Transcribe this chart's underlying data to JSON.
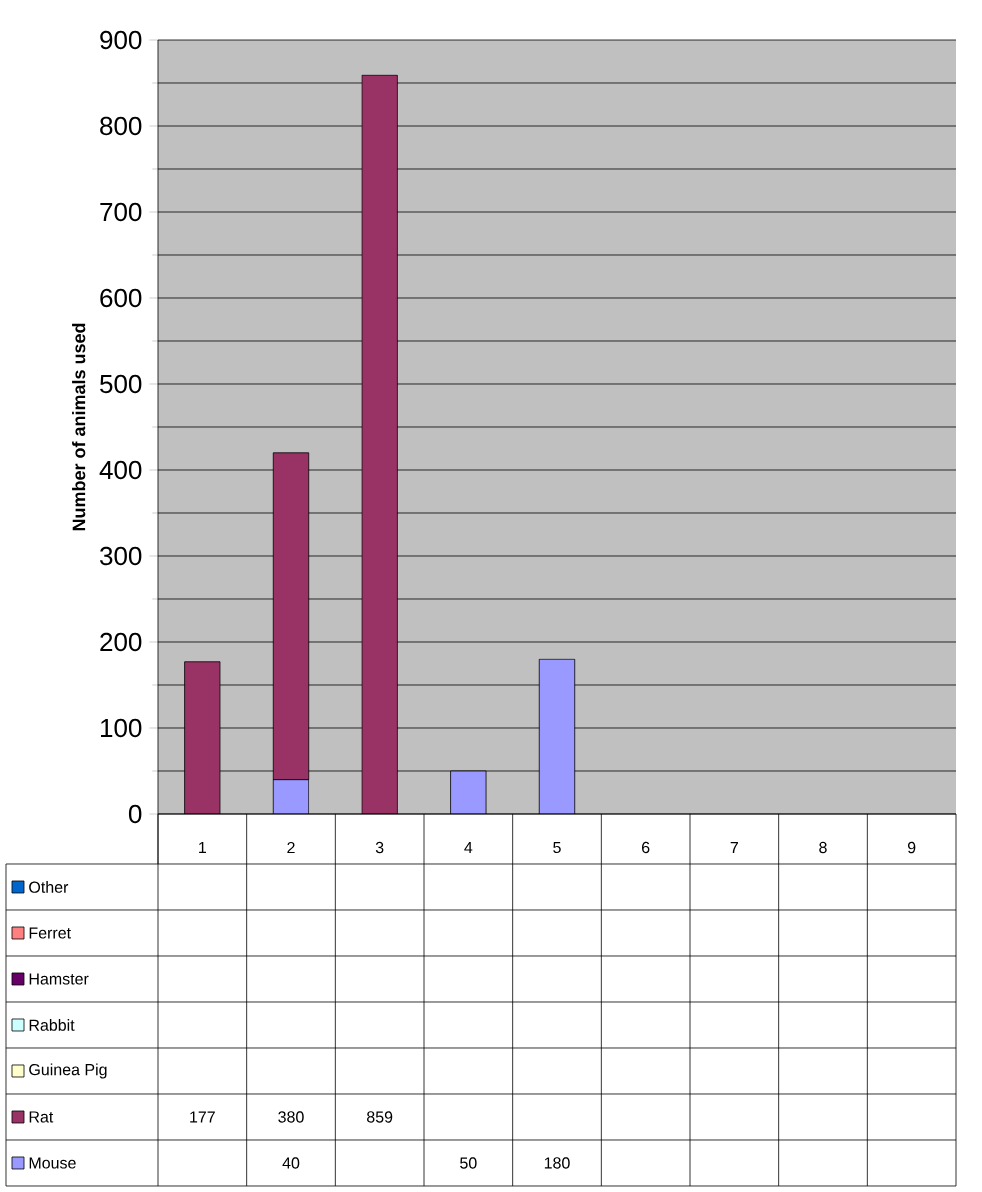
{
  "chart_data": {
    "type": "bar",
    "stacked": true,
    "ylabel": "Number of animals used",
    "categories": [
      "1",
      "2",
      "3",
      "4",
      "5",
      "6",
      "7",
      "8",
      "9"
    ],
    "series": [
      {
        "name": "Mouse",
        "color": "#9999ff",
        "values": [
          null,
          40,
          null,
          50,
          180,
          null,
          null,
          null,
          null
        ]
      },
      {
        "name": "Rat",
        "color": "#993366",
        "values": [
          177,
          380,
          859,
          null,
          null,
          null,
          null,
          null,
          null
        ]
      },
      {
        "name": "Guinea Pig",
        "color": "#ffffcc",
        "values": [
          null,
          null,
          null,
          null,
          null,
          null,
          null,
          null,
          null
        ]
      },
      {
        "name": "Rabbit",
        "color": "#ccffff",
        "values": [
          null,
          null,
          null,
          null,
          null,
          null,
          null,
          null,
          null
        ]
      },
      {
        "name": "Hamster",
        "color": "#660066",
        "values": [
          null,
          null,
          null,
          null,
          null,
          null,
          null,
          null,
          null
        ]
      },
      {
        "name": "Ferret",
        "color": "#ff8080",
        "values": [
          null,
          null,
          null,
          null,
          null,
          null,
          null,
          null,
          null
        ]
      },
      {
        "name": "Other",
        "color": "#0066cc",
        "values": [
          null,
          null,
          null,
          null,
          null,
          null,
          null,
          null,
          null
        ]
      }
    ],
    "ylim": [
      0,
      900
    ],
    "yticks": [
      0,
      100,
      200,
      300,
      400,
      500,
      600,
      700,
      800,
      900
    ],
    "grid": "y",
    "legend": "bottom",
    "data_labels": true
  }
}
